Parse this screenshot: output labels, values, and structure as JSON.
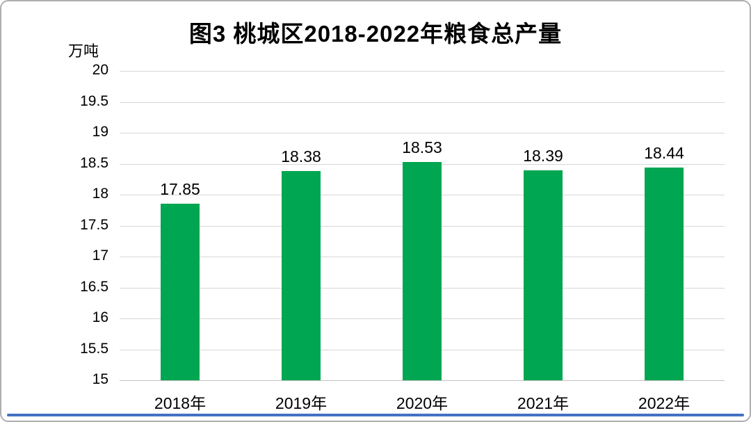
{
  "chart_data": {
    "type": "bar",
    "title": "图3 桃城区2018-2022年粮食总产量",
    "ylabel": "万吨",
    "xlabel": "",
    "categories": [
      "2018年",
      "2019年",
      "2020年",
      "2021年",
      "2022年"
    ],
    "values": [
      17.85,
      18.38,
      18.53,
      18.39,
      18.44
    ],
    "value_labels": [
      "17.85",
      "18.38",
      "18.53",
      "18.39",
      "18.44"
    ],
    "ylim": [
      15,
      20
    ],
    "ytick_step": 0.5,
    "grid": true,
    "legend_position": "none",
    "bar_color": "#00A651",
    "gridline_color": "#d6d6d6",
    "accent_line_color": "#4472C4"
  }
}
